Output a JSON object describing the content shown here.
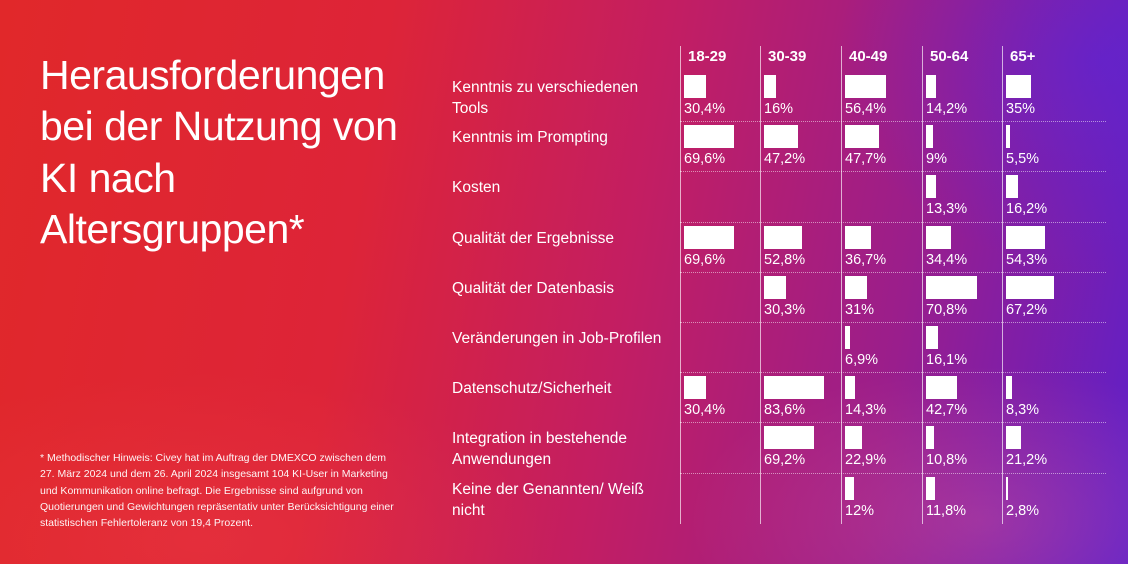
{
  "title": "Herausforderungen bei der Nutzung von KI nach Altersgruppen*",
  "footnote": "* Methodischer Hinweis: Civey hat im Auftrag der DMEXCO zwischen dem 27. März 2024 und dem 26. April 2024 insgesamt 104 KI-User in Marketing und Kommunikation online befragt. Die Ergebnisse sind aufgrund von Quotierungen und Gewichtungen repräsentativ unter Berücksichtigung einer statistischen Fehlertoleranz von 19,4 Prozent.",
  "chart_data": {
    "type": "bar",
    "title": "Herausforderungen bei der Nutzung von KI nach Altersgruppen*",
    "value_unit": "%",
    "scale_max": 100,
    "columns": [
      "18-29",
      "30-39",
      "40-49",
      "50-64",
      "65+"
    ],
    "rows": [
      {
        "label": "Kenntnis zu verschiedenen Tools",
        "values": [
          30.4,
          16,
          56.4,
          14.2,
          35
        ],
        "labels": [
          "30,4%",
          "16%",
          "56,4%",
          "14,2%",
          "35%"
        ]
      },
      {
        "label": "Kenntnis im Prompting",
        "values": [
          69.6,
          47.2,
          47.7,
          9,
          5.5
        ],
        "labels": [
          "69,6%",
          "47,2%",
          "47,7%",
          "9%",
          "5,5%"
        ]
      },
      {
        "label": "Kosten",
        "values": [
          null,
          null,
          null,
          13.3,
          16.2
        ],
        "labels": [
          "",
          "",
          "",
          "13,3%",
          "16,2%"
        ]
      },
      {
        "label": "Qualität der Ergebnisse",
        "values": [
          69.6,
          52.8,
          36.7,
          34.4,
          54.3
        ],
        "labels": [
          "69,6%",
          "52,8%",
          "36,7%",
          "34,4%",
          "54,3%"
        ]
      },
      {
        "label": "Qualität der Datenbasis",
        "values": [
          null,
          30.3,
          31,
          70.8,
          67.2
        ],
        "labels": [
          "",
          "30,3%",
          "31%",
          "70,8%",
          "67,2%"
        ]
      },
      {
        "label": "Veränderungen in Job-Profilen",
        "values": [
          null,
          null,
          6.9,
          16.1,
          null
        ],
        "labels": [
          "",
          "",
          "6,9%",
          "16,1%",
          ""
        ]
      },
      {
        "label": "Datenschutz/Sicherheit",
        "values": [
          30.4,
          83.6,
          14.3,
          42.7,
          8.3
        ],
        "labels": [
          "30,4%",
          "83,6%",
          "14,3%",
          "42,7%",
          "8,3%"
        ]
      },
      {
        "label": "Integration in bestehende Anwendungen",
        "values": [
          null,
          69.2,
          22.9,
          10.8,
          21.2
        ],
        "labels": [
          "",
          "69,2%",
          "22,9%",
          "10,8%",
          "21,2%"
        ]
      },
      {
        "label": "Keine der Genannten/ Weiß nicht",
        "values": [
          null,
          null,
          12,
          11.8,
          2.8
        ],
        "labels": [
          "",
          "",
          "12%",
          "11,8%",
          "2,8%"
        ]
      }
    ]
  }
}
